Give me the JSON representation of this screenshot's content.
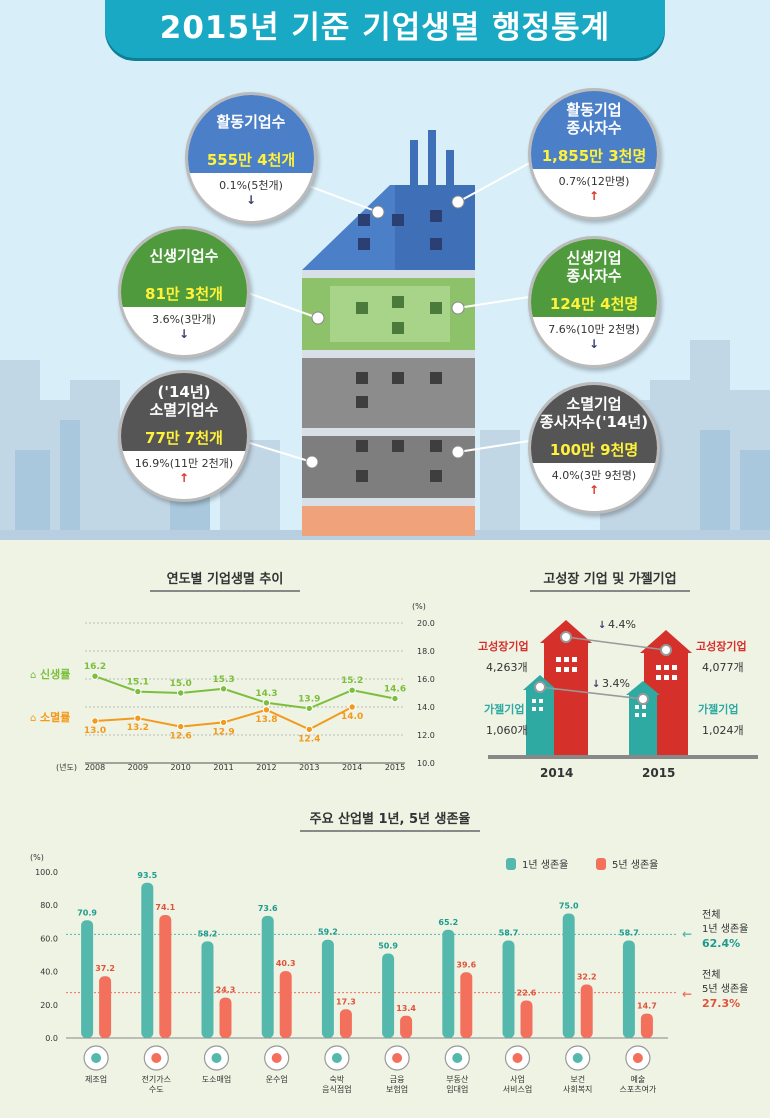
{
  "header": {
    "title": "2015년 기준 기업생멸 행정통계"
  },
  "bubbles": [
    {
      "id": "active-firms",
      "title1": "활동기업수",
      "title2": "",
      "value": "555만 4천개",
      "change": "0.1%(5천개)",
      "direction": "down",
      "color": "#4b7fc8"
    },
    {
      "id": "active-employees",
      "title1": "활동기업",
      "title2": "종사자수",
      "value": "1,855만 3천명",
      "change": "0.7%(12만명)",
      "direction": "up",
      "color": "#4b7fc8"
    },
    {
      "id": "new-firms",
      "title1": "신생기업수",
      "title2": "",
      "value": "81만 3천개",
      "change": "3.6%(3만개)",
      "direction": "down",
      "color": "#4e9a3c"
    },
    {
      "id": "new-employees",
      "title1": "신생기업",
      "title2": "종사자수",
      "value": "124만 4천명",
      "change": "7.6%(10만 2천명)",
      "direction": "down",
      "color": "#4e9a3c"
    },
    {
      "id": "closed-firms",
      "title1": "('14년)",
      "title2": "소멸기업수",
      "value": "77만 7천개",
      "change": "16.9%(11만 2천개)",
      "direction": "up",
      "color": "#555555"
    },
    {
      "id": "closed-employees",
      "title1": "소멸기업",
      "title2": "종사자수('14년)",
      "value": "100만 9천명",
      "change": "4.0%(3만 9천명)",
      "direction": "up",
      "color": "#555555"
    }
  ],
  "trend": {
    "title": "연도별 기업생멸 추이",
    "unit": "(%)",
    "year_label": "(년도)",
    "birth_label": "신생률",
    "death_label": "소멸률",
    "birth_color": "#7cbf3c",
    "death_color": "#f39a1c"
  },
  "growth": {
    "title": "고성장 기업 및 가젤기업",
    "high_label": "고성장기업",
    "gazelle_label": "가젤기업",
    "high_2014": "4,263개",
    "high_2015": "4,077개",
    "gazelle_2014": "1,060개",
    "gazelle_2015": "1,024개",
    "high_change": "4.4%",
    "gazelle_change": "3.4%",
    "year_2014": "2014",
    "year_2015": "2015"
  },
  "survival": {
    "title": "주요 산업별 1년, 5년 생존율",
    "unit": "(%)",
    "legend_1y": "1년 생존율",
    "legend_5y": "5년 생존율",
    "color_1y": "#55b8ad",
    "color_5y": "#f2705c",
    "total_label_1y": [
      "전체",
      "1년 생존율"
    ],
    "total_value_1y": "62.4%",
    "total_label_5y": [
      "전체",
      "5년 생존율"
    ],
    "total_value_5y": "27.3%",
    "industry_icons": [
      "tools-icon",
      "bulb-icon",
      "cart-icon",
      "truck-icon",
      "food-icon",
      "money-icon",
      "building-icon",
      "person-icon",
      "heart-icon",
      "clapper-icon"
    ]
  },
  "chart_data": [
    {
      "type": "line",
      "title": "연도별 기업생멸 추이",
      "x": [
        "2008",
        "2009",
        "2010",
        "2011",
        "2012",
        "2013",
        "2014",
        "2015"
      ],
      "series": [
        {
          "name": "신생률",
          "values": [
            16.2,
            15.1,
            15.0,
            15.3,
            14.3,
            13.9,
            15.2,
            14.6
          ]
        },
        {
          "name": "소멸률",
          "values": [
            13.0,
            13.2,
            12.6,
            12.9,
            13.8,
            12.4,
            14.0,
            null
          ]
        }
      ],
      "y_ticks": [
        "10.0",
        "12.0",
        "14.0",
        "16.0",
        "18.0",
        "20.0"
      ],
      "ylim": [
        10,
        20
      ],
      "ylabel": "(%)",
      "xlabel": "(년도)"
    },
    {
      "type": "bar",
      "title": "고성장 기업 및 가젤기업",
      "categories": [
        "2014",
        "2015"
      ],
      "series": [
        {
          "name": "고성장기업",
          "values": [
            4263,
            4077
          ]
        },
        {
          "name": "가젤기업",
          "values": [
            1060,
            1024
          ]
        }
      ]
    },
    {
      "type": "bar",
      "title": "주요 산업별 1년, 5년 생존율",
      "categories": [
        [
          "제조업"
        ],
        [
          "전기가스",
          "수도"
        ],
        [
          "도소매업"
        ],
        [
          "운수업"
        ],
        [
          "숙박",
          "음식점업"
        ],
        [
          "금융",
          "보험업"
        ],
        [
          "부동산",
          "임대업"
        ],
        [
          "사업",
          "서비스업"
        ],
        [
          "보건",
          "사회복지"
        ],
        [
          "예술",
          "스포츠여가"
        ]
      ],
      "series": [
        {
          "name": "1년 생존율",
          "values": [
            70.9,
            93.5,
            58.2,
            73.6,
            59.2,
            50.9,
            65.2,
            58.7,
            75.0,
            58.7
          ]
        },
        {
          "name": "5년 생존율",
          "values": [
            37.2,
            74.1,
            24.3,
            40.3,
            17.3,
            13.4,
            39.6,
            22.6,
            32.2,
            14.7
          ]
        }
      ],
      "y_ticks": [
        "0.0",
        "20.0",
        "40.0",
        "60.0",
        "80.0",
        "100.0"
      ],
      "ylim": [
        0,
        100
      ],
      "ylabel": "(%)",
      "reference_lines": [
        62.4,
        27.3
      ]
    }
  ]
}
